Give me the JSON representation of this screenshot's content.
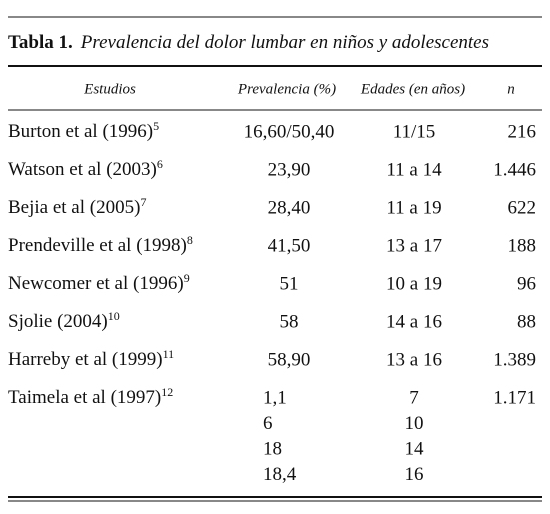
{
  "table": {
    "title": {
      "label": "Tabla 1.",
      "text": "Prevalencia del dolor lumbar en niños y adolescentes"
    },
    "header": [
      "Estudios",
      "Prevalencia (%)",
      "Edades (en años)",
      "n"
    ],
    "rows": [
      {
        "study": "Burton et al (1996)",
        "ref": "5",
        "prevalence": [
          "16,60/50,40"
        ],
        "ages": [
          "11/15"
        ],
        "n": "216"
      },
      {
        "study": "Watson et al (2003)",
        "ref": "6",
        "prevalence": [
          "23,90"
        ],
        "ages": [
          "11 a 14"
        ],
        "n": "1.446"
      },
      {
        "study": "Bejia et al (2005)",
        "ref": "7",
        "prevalence": [
          "28,40"
        ],
        "ages": [
          "11 a 19"
        ],
        "n": "622"
      },
      {
        "study": "Prendeville et al (1998)",
        "ref": "8",
        "prevalence": [
          "41,50"
        ],
        "ages": [
          "13 a 17"
        ],
        "n": "188"
      },
      {
        "study": "Newcomer et al (1996)",
        "ref": "9",
        "prevalence": [
          "51"
        ],
        "ages": [
          "10 a 19"
        ],
        "n": "96"
      },
      {
        "study": "Sjolie (2004)",
        "ref": "10",
        "prevalence": [
          "58"
        ],
        "ages": [
          "14 a 16"
        ],
        "n": "88"
      },
      {
        "study": "Harreby et al (1999)",
        "ref": "11",
        "prevalence": [
          "58,90"
        ],
        "ages": [
          "13 a 16"
        ],
        "n": "1.389"
      },
      {
        "study": "Taimela et al (1997)",
        "ref": "12",
        "prevalence": [
          "1,1",
          "6",
          "18",
          "18,4"
        ],
        "ages": [
          "7",
          "10",
          "14",
          "16"
        ],
        "n": "1.171"
      }
    ]
  }
}
